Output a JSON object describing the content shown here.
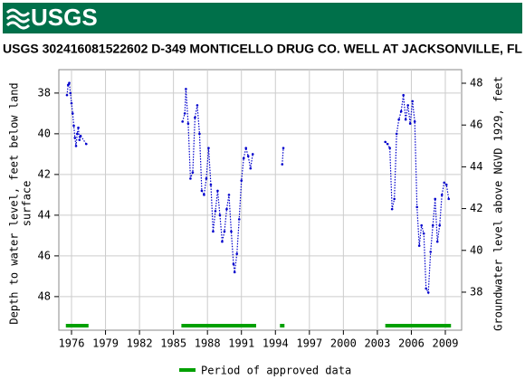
{
  "header": {
    "logo": "USGS"
  },
  "chart_data": {
    "type": "line",
    "title": "USGS 302416081522602 D-349 MONTICELLO DRUG CO. WELL AT JACKSONVILLE, FL",
    "ylabel": [
      "Depth to water level, feet below land",
      "surface"
    ],
    "y2label": "Groundwater level above NGVD 1929, feet",
    "xlim": [
      1974.88,
      2010.44
    ],
    "xticks": [
      1976,
      1979,
      1982,
      1985,
      1988,
      1991,
      1994,
      1997,
      2000,
      2003,
      2006,
      2009
    ],
    "ylim": [
      36.85,
      49.65
    ],
    "yticks": [
      38,
      40,
      42,
      44,
      46,
      48
    ],
    "y_inverted": true,
    "y2lim": [
      36.18,
      48.65
    ],
    "y2ticks": [
      38,
      40,
      42,
      44,
      46,
      48
    ],
    "grid": true,
    "series": [
      {
        "color": "#0000cc",
        "x": [
          1975.6,
          1975.7,
          1975.8,
          1975.9,
          1976.0,
          1976.1,
          1976.2,
          1976.3,
          1976.4,
          1976.5,
          1976.6,
          1976.7,
          1976.8,
          1977.3,
          null,
          1985.8,
          1986.0,
          1986.1,
          1986.3,
          1986.5,
          1986.7,
          1986.9,
          1987.1,
          1987.3,
          1987.5,
          1987.7,
          1987.9,
          1988.1,
          1988.3,
          1988.5,
          1988.7,
          1988.9,
          1989.1,
          1989.3,
          1989.5,
          1989.7,
          1989.9,
          1990.1,
          1990.3,
          1990.4,
          1990.6,
          1990.8,
          1991.0,
          1991.2,
          1991.4,
          1991.6,
          1991.8,
          1992.0,
          null,
          1994.6,
          1994.7,
          null,
          2003.7,
          2003.9,
          2004.1,
          2004.3,
          2004.5,
          2004.7,
          2004.9,
          2005.1,
          2005.3,
          2005.5,
          2005.7,
          2005.9,
          2006.1,
          2006.3,
          2006.5,
          2006.7,
          2006.9,
          2007.1,
          2007.3,
          2007.5,
          2007.7,
          2007.9,
          2008.1,
          2008.3,
          2008.5,
          2008.7,
          2008.9,
          2009.1,
          2009.3
        ],
        "values": [
          38.1,
          37.6,
          37.5,
          38.0,
          38.5,
          39.0,
          39.6,
          40.2,
          40.6,
          40.0,
          39.7,
          40.3,
          40.1,
          40.5,
          null,
          39.4,
          39.0,
          37.8,
          39.5,
          42.2,
          41.9,
          39.2,
          38.6,
          40.0,
          42.8,
          43.0,
          42.2,
          40.7,
          42.5,
          44.8,
          43.8,
          42.8,
          44.0,
          45.3,
          44.8,
          43.7,
          43.0,
          44.8,
          46.4,
          46.8,
          45.9,
          44.2,
          42.3,
          41.2,
          40.7,
          41.1,
          41.7,
          41.0,
          null,
          41.5,
          40.7,
          null,
          40.4,
          40.5,
          40.7,
          43.7,
          43.2,
          40.0,
          39.3,
          38.9,
          38.1,
          39.3,
          38.6,
          39.5,
          38.4,
          39.4,
          43.6,
          45.5,
          44.5,
          44.9,
          47.6,
          47.8,
          45.8,
          44.5,
          43.2,
          45.3,
          44.5,
          43.0,
          42.4,
          42.5,
          43.2
        ]
      }
    ],
    "approved": {
      "name": "Period of approved data",
      "color": "#00a000",
      "periods": [
        [
          1975.5,
          1977.5
        ],
        [
          1985.7,
          1992.3
        ],
        [
          1994.4,
          1994.8
        ],
        [
          2003.7,
          2009.5
        ]
      ]
    }
  }
}
